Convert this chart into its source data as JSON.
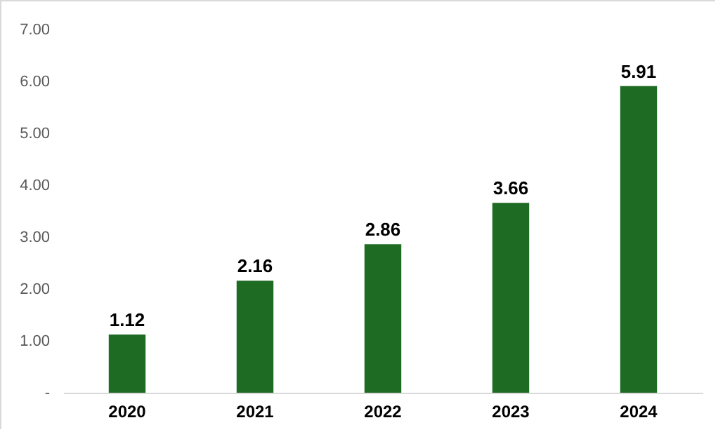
{
  "chart_data": {
    "type": "bar",
    "categories": [
      "2020",
      "2021",
      "2022",
      "2023",
      "2024"
    ],
    "values": [
      1.12,
      2.16,
      2.86,
      3.66,
      5.91
    ],
    "color": "#1e6b24",
    "ylim": [
      0,
      7
    ],
    "yticks": [
      {
        "value": 0,
        "label": "-"
      },
      {
        "value": 1,
        "label": "1.00"
      },
      {
        "value": 2,
        "label": "2.00"
      },
      {
        "value": 3,
        "label": "3.00"
      },
      {
        "value": 4,
        "label": "4.00"
      },
      {
        "value": 5,
        "label": "5.00"
      },
      {
        "value": 6,
        "label": "6.00"
      },
      {
        "value": 7,
        "label": "7.00"
      }
    ],
    "data_labels": true,
    "grid": false
  }
}
